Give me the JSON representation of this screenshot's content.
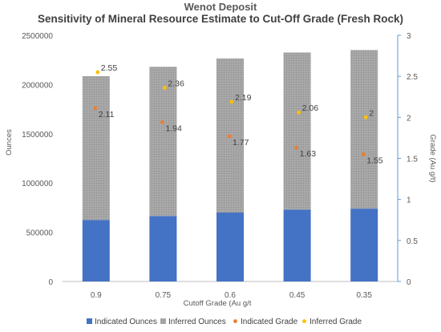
{
  "chart_data": {
    "type": "bar",
    "title": "Wenot Deposit",
    "subtitle": "Sensitivity of Mineral Resource Estimate to Cut-Off Grade (Fresh Rock)",
    "xlabel": "Cutoff Grade (Au g/t",
    "ylabel": "Ounces",
    "y2label": "Grade (Au g/t)",
    "categories": [
      "0.9",
      "0.75",
      "0.6",
      "0.45",
      "0.35"
    ],
    "ylim": [
      0,
      2500000
    ],
    "yticks": [
      "0",
      "500000",
      "1000000",
      "1500000",
      "2000000",
      "2500000"
    ],
    "y2lim": [
      0,
      3
    ],
    "y2ticks": [
      "0",
      "0.5",
      "1",
      "1.5",
      "2",
      "2.5",
      "3"
    ],
    "stacked": true,
    "series": [
      {
        "name": "Indicated Ounces",
        "kind": "bar",
        "axis": "left",
        "color": "#4472c4",
        "values": [
          625000,
          665000,
          700000,
          730000,
          740000
        ]
      },
      {
        "name": "Inferred Ounces",
        "kind": "bar",
        "axis": "left",
        "color": "#a5a5a5",
        "values": [
          1460000,
          1515000,
          1565000,
          1595000,
          1610000
        ]
      },
      {
        "name": "Indicated Grade",
        "kind": "scatter",
        "axis": "right",
        "color": "#ed7d31",
        "values": [
          2.11,
          1.94,
          1.77,
          1.63,
          1.55
        ],
        "labels": [
          "2.11",
          "1.94",
          "1.77",
          "1.63",
          "1.55"
        ]
      },
      {
        "name": "Inferred Grade",
        "kind": "scatter",
        "axis": "right",
        "color": "#ffc000",
        "values": [
          2.55,
          2.36,
          2.19,
          2.06,
          2.0
        ],
        "labels": [
          "2.55",
          "2.36",
          "2.19",
          "2.06",
          "2"
        ]
      }
    ],
    "legend_position": "bottom",
    "grid": false
  },
  "colors": {
    "axis_right": "#5b9bd5",
    "axis_left": "#bfbfbf",
    "text": "#404040"
  }
}
